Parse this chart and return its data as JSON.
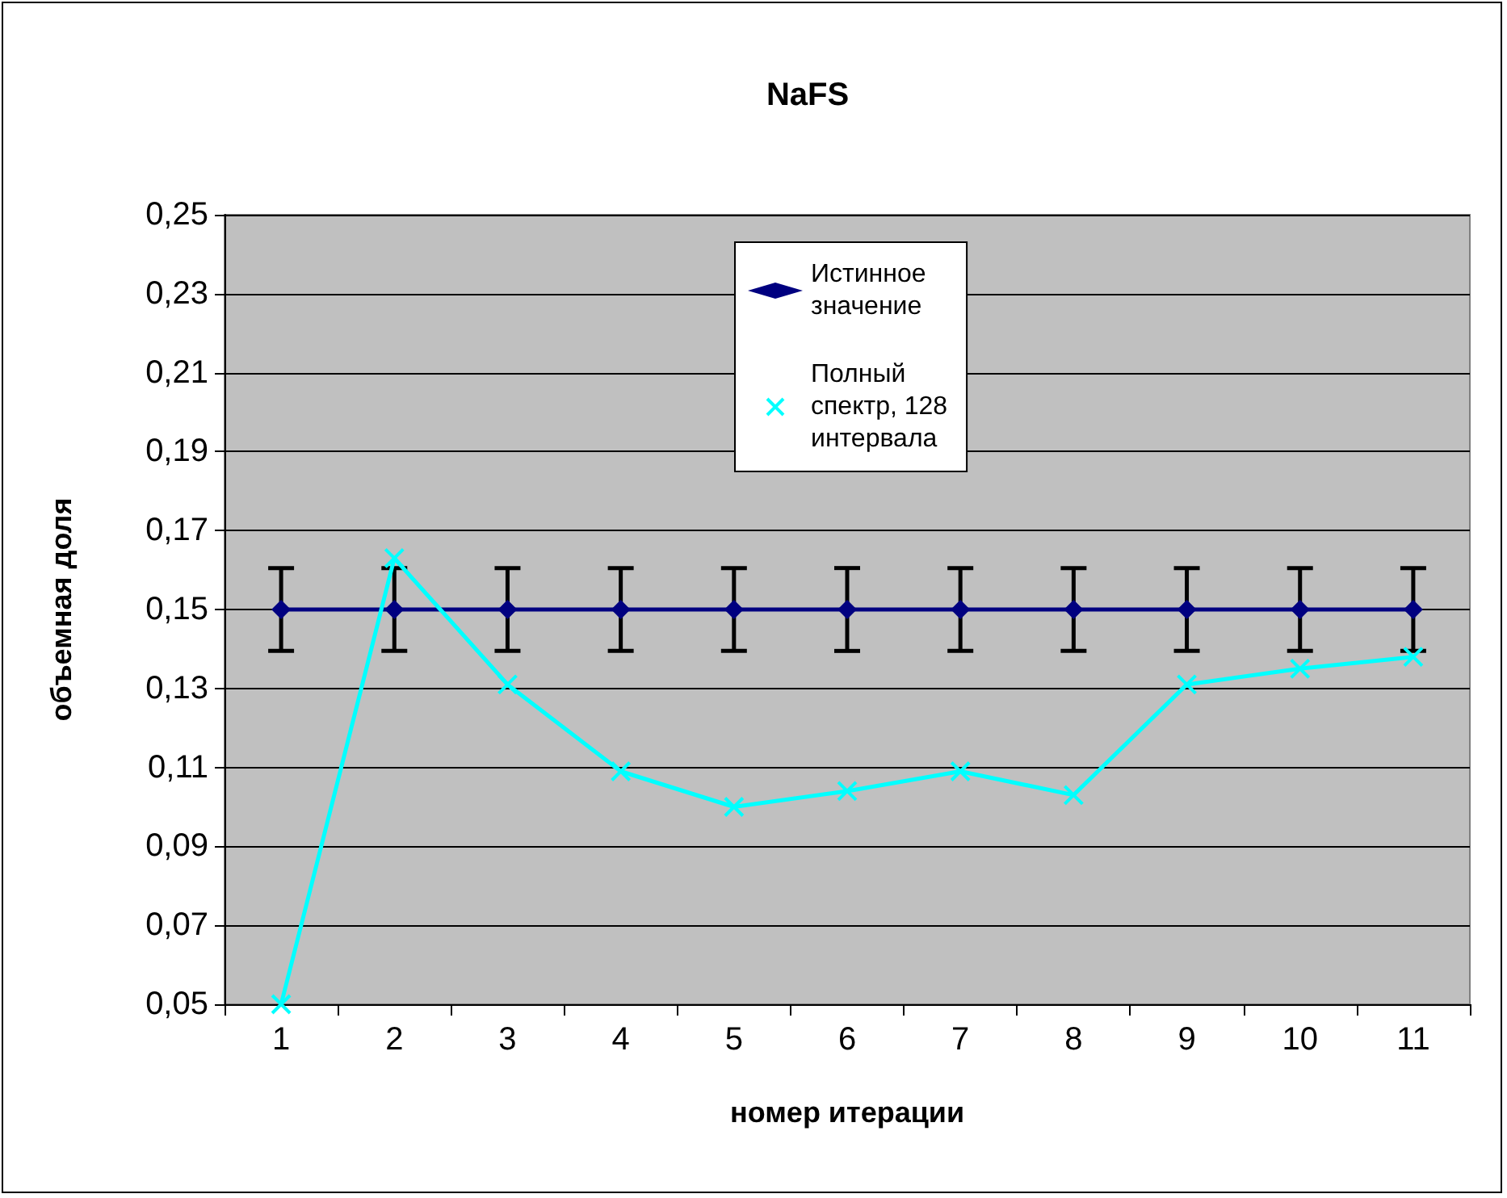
{
  "chart_data": {
    "type": "line",
    "title": "NaFS",
    "xlabel": "номер итерации",
    "ylabel": "объемная доля",
    "categories": [
      "1",
      "2",
      "3",
      "4",
      "5",
      "6",
      "7",
      "8",
      "9",
      "10",
      "11"
    ],
    "series": [
      {
        "name": "Истинное значение",
        "color": "#000080",
        "marker": "diamond",
        "values": [
          0.15,
          0.15,
          0.15,
          0.15,
          0.15,
          0.15,
          0.15,
          0.15,
          0.15,
          0.15,
          0.15
        ],
        "errors": [
          0.0105,
          0.0105,
          0.0105,
          0.0105,
          0.0105,
          0.0105,
          0.0105,
          0.0105,
          0.0105,
          0.0105,
          0.0105
        ]
      },
      {
        "name": "Полный спектр, 128 интервала",
        "color": "#00ffff",
        "marker": "cross",
        "values": [
          0.05,
          0.163,
          0.131,
          0.109,
          0.1,
          0.104,
          0.109,
          0.103,
          0.131,
          0.135,
          0.138
        ]
      }
    ],
    "ylim": [
      0.05,
      0.25
    ],
    "yticks": [
      {
        "value": 0.05,
        "label": "0,05"
      },
      {
        "value": 0.07,
        "label": "0,07"
      },
      {
        "value": 0.09,
        "label": "0,09"
      },
      {
        "value": 0.11,
        "label": "0,11"
      },
      {
        "value": 0.13,
        "label": "0,13"
      },
      {
        "value": 0.15,
        "label": "0,15"
      },
      {
        "value": 0.17,
        "label": "0,17"
      },
      {
        "value": 0.19,
        "label": "0,19"
      },
      {
        "value": 0.21,
        "label": "0,21"
      },
      {
        "value": 0.23,
        "label": "0,23"
      },
      {
        "value": 0.25,
        "label": "0,25"
      }
    ],
    "grid": "y",
    "legend": "top"
  }
}
